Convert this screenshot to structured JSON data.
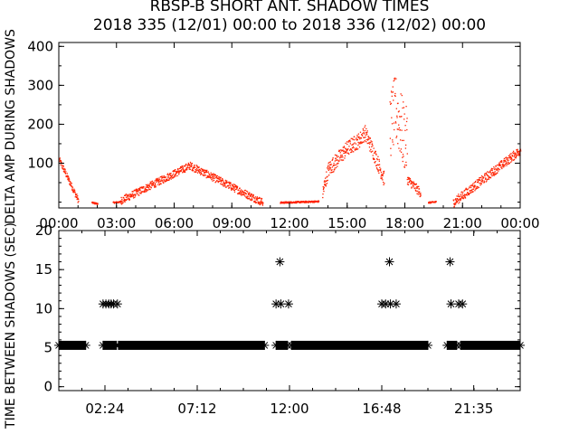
{
  "title_line1": "RBSP-B SHORT ANT. SHADOW TIMES",
  "title_line2": "2018 335 (12/01) 00:00 to 2018 336 (12/02) 00:00",
  "chart_data": [
    {
      "type": "scatter",
      "ylabel": "DELTA AMP DURING SHADOWS",
      "xlim": [
        0,
        24
      ],
      "ylim": [
        -15,
        410
      ],
      "x_tick_labels": [
        "00:00",
        "03:00",
        "06:00",
        "09:00",
        "12:00",
        "15:00",
        "18:00",
        "21:00",
        "00:00"
      ],
      "y_tick_labels": [
        "100",
        "200",
        "300",
        "400"
      ],
      "color": "#ff2200",
      "segments": [
        {
          "x": [
            0.0,
            1.0
          ],
          "y": [
            110,
            5
          ],
          "spread": 8
        },
        {
          "x": [
            1.7,
            2.0
          ],
          "y": [
            0,
            -3
          ],
          "spread": 2
        },
        {
          "x": [
            2.8,
            3.2
          ],
          "y": [
            0,
            2
          ],
          "spread": 2
        },
        {
          "x": [
            3.2,
            6.8,
            10.6
          ],
          "y": [
            5,
            95,
            0
          ],
          "spread": 10
        },
        {
          "x": [
            11.5,
            13.5
          ],
          "y": [
            0,
            3
          ],
          "spread": 2
        },
        {
          "x": [
            13.7,
            14.0,
            15.0,
            15.6,
            15.9,
            16.3,
            16.9
          ],
          "y": [
            25,
            85,
            140,
            160,
            180,
            135,
            60
          ],
          "spread": 20
        },
        {
          "x": [
            17.2,
            17.5,
            17.8,
            18.1
          ],
          "y": [
            200,
            240,
            190,
            150
          ],
          "spread": 90
        },
        {
          "x": [
            18.1,
            18.8
          ],
          "y": [
            60,
            25
          ],
          "spread": 12
        },
        {
          "x": [
            19.2,
            19.6
          ],
          "y": [
            0,
            2
          ],
          "spread": 2
        },
        {
          "x": [
            20.5,
            24.0
          ],
          "y": [
            0,
            135
          ],
          "spread": 12
        }
      ]
    },
    {
      "type": "scatter",
      "ylabel": "TIME BETWEEN SHADOWS (SEC)",
      "xlim": [
        0,
        24
      ],
      "ylim": [
        -0.5,
        20
      ],
      "x_tick_labels": [
        "02:24",
        "07:12",
        "12:00",
        "16:48",
        "21:35"
      ],
      "x_tick_values": [
        2.4,
        7.2,
        12.0,
        16.8,
        21.5833
      ],
      "y_tick_labels": [
        "0",
        "5",
        "10",
        "15",
        "20"
      ],
      "marker": "asterisk",
      "baseline": {
        "y": 5.3,
        "ranges": [
          [
            0.0,
            1.4
          ],
          [
            2.3,
            3.0
          ],
          [
            3.1,
            10.7
          ],
          [
            11.3,
            11.9
          ],
          [
            12.1,
            19.2
          ],
          [
            20.2,
            20.7
          ],
          [
            20.9,
            24.0
          ]
        ]
      },
      "points": [
        {
          "x": 2.3,
          "y": 10.6
        },
        {
          "x": 2.45,
          "y": 10.6
        },
        {
          "x": 2.6,
          "y": 10.6
        },
        {
          "x": 2.72,
          "y": 10.6
        },
        {
          "x": 2.85,
          "y": 10.6
        },
        {
          "x": 3.05,
          "y": 10.6
        },
        {
          "x": 11.3,
          "y": 10.6
        },
        {
          "x": 11.55,
          "y": 10.6
        },
        {
          "x": 11.95,
          "y": 10.6
        },
        {
          "x": 11.5,
          "y": 16.0
        },
        {
          "x": 16.8,
          "y": 10.6
        },
        {
          "x": 17.0,
          "y": 10.6
        },
        {
          "x": 17.25,
          "y": 10.6
        },
        {
          "x": 17.55,
          "y": 10.6
        },
        {
          "x": 17.2,
          "y": 16.0
        },
        {
          "x": 20.4,
          "y": 10.6
        },
        {
          "x": 20.8,
          "y": 10.6
        },
        {
          "x": 21.0,
          "y": 10.6
        },
        {
          "x": 20.35,
          "y": 16.0
        }
      ]
    }
  ]
}
